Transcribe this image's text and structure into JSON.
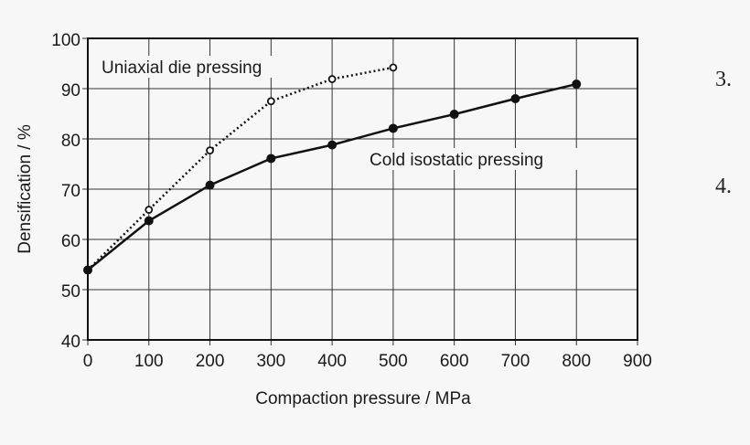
{
  "chart_data": {
    "type": "line",
    "xlabel": "Compaction pressure / MPa",
    "ylabel": "Densification / %",
    "xlim": [
      0,
      900
    ],
    "ylim": [
      40,
      100
    ],
    "xticks": [
      0,
      100,
      200,
      300,
      400,
      500,
      600,
      700,
      800,
      900
    ],
    "yticks": [
      40,
      50,
      60,
      70,
      80,
      90,
      100
    ],
    "grid": true,
    "series": [
      {
        "name": "Uniaxial die pressing",
        "style": "dotted",
        "marker": "open-circle",
        "x": [
          0,
          100,
          200,
          300,
          400,
          500
        ],
        "y": [
          53.9,
          65.9,
          77.7,
          87.5,
          91.9,
          94.2
        ]
      },
      {
        "name": "Cold isostatic pressing",
        "style": "solid",
        "marker": "filled-circle",
        "x": [
          0,
          100,
          200,
          300,
          400,
          500,
          600,
          700,
          800
        ],
        "y": [
          53.9,
          63.7,
          70.8,
          76.1,
          78.8,
          82.1,
          84.9,
          88.0,
          90.9
        ]
      }
    ]
  },
  "side_labels": [
    "3.",
    "4."
  ],
  "colors": {
    "background": "#f7f7f7",
    "line": "#1a1a1a",
    "grid": "#333333"
  }
}
